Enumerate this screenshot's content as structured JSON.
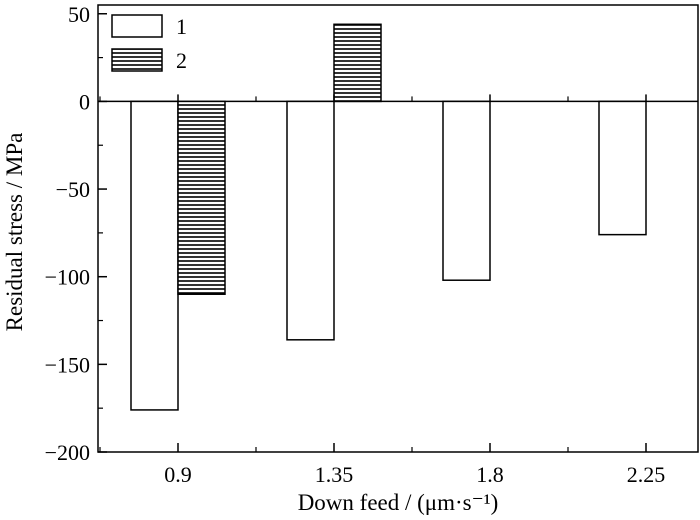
{
  "chart_data": {
    "type": "bar",
    "categories": [
      "0.9",
      "1.35",
      "1.8",
      "2.25"
    ],
    "series": [
      {
        "name": "1",
        "values": [
          -176,
          -136,
          -102,
          -76
        ],
        "fill": "open"
      },
      {
        "name": "2",
        "values": [
          -110,
          44,
          null,
          null
        ],
        "fill": "horizontal-hatch"
      }
    ],
    "xlabel": "Down feed / (μm·s⁻¹)",
    "ylabel": "Residual stress / MPa",
    "ylim": [
      -200,
      55
    ],
    "yticks": [
      "50",
      "0",
      "−50",
      "−100",
      "−150",
      "−200"
    ],
    "ytick_values": [
      50,
      0,
      -50,
      -100,
      -150,
      -200
    ],
    "zero_line": true,
    "grid": false,
    "legend_position": "top-left",
    "colors": {
      "axis": "#000000",
      "bar_fill": "#ffffff",
      "hatch": "#000000"
    }
  }
}
